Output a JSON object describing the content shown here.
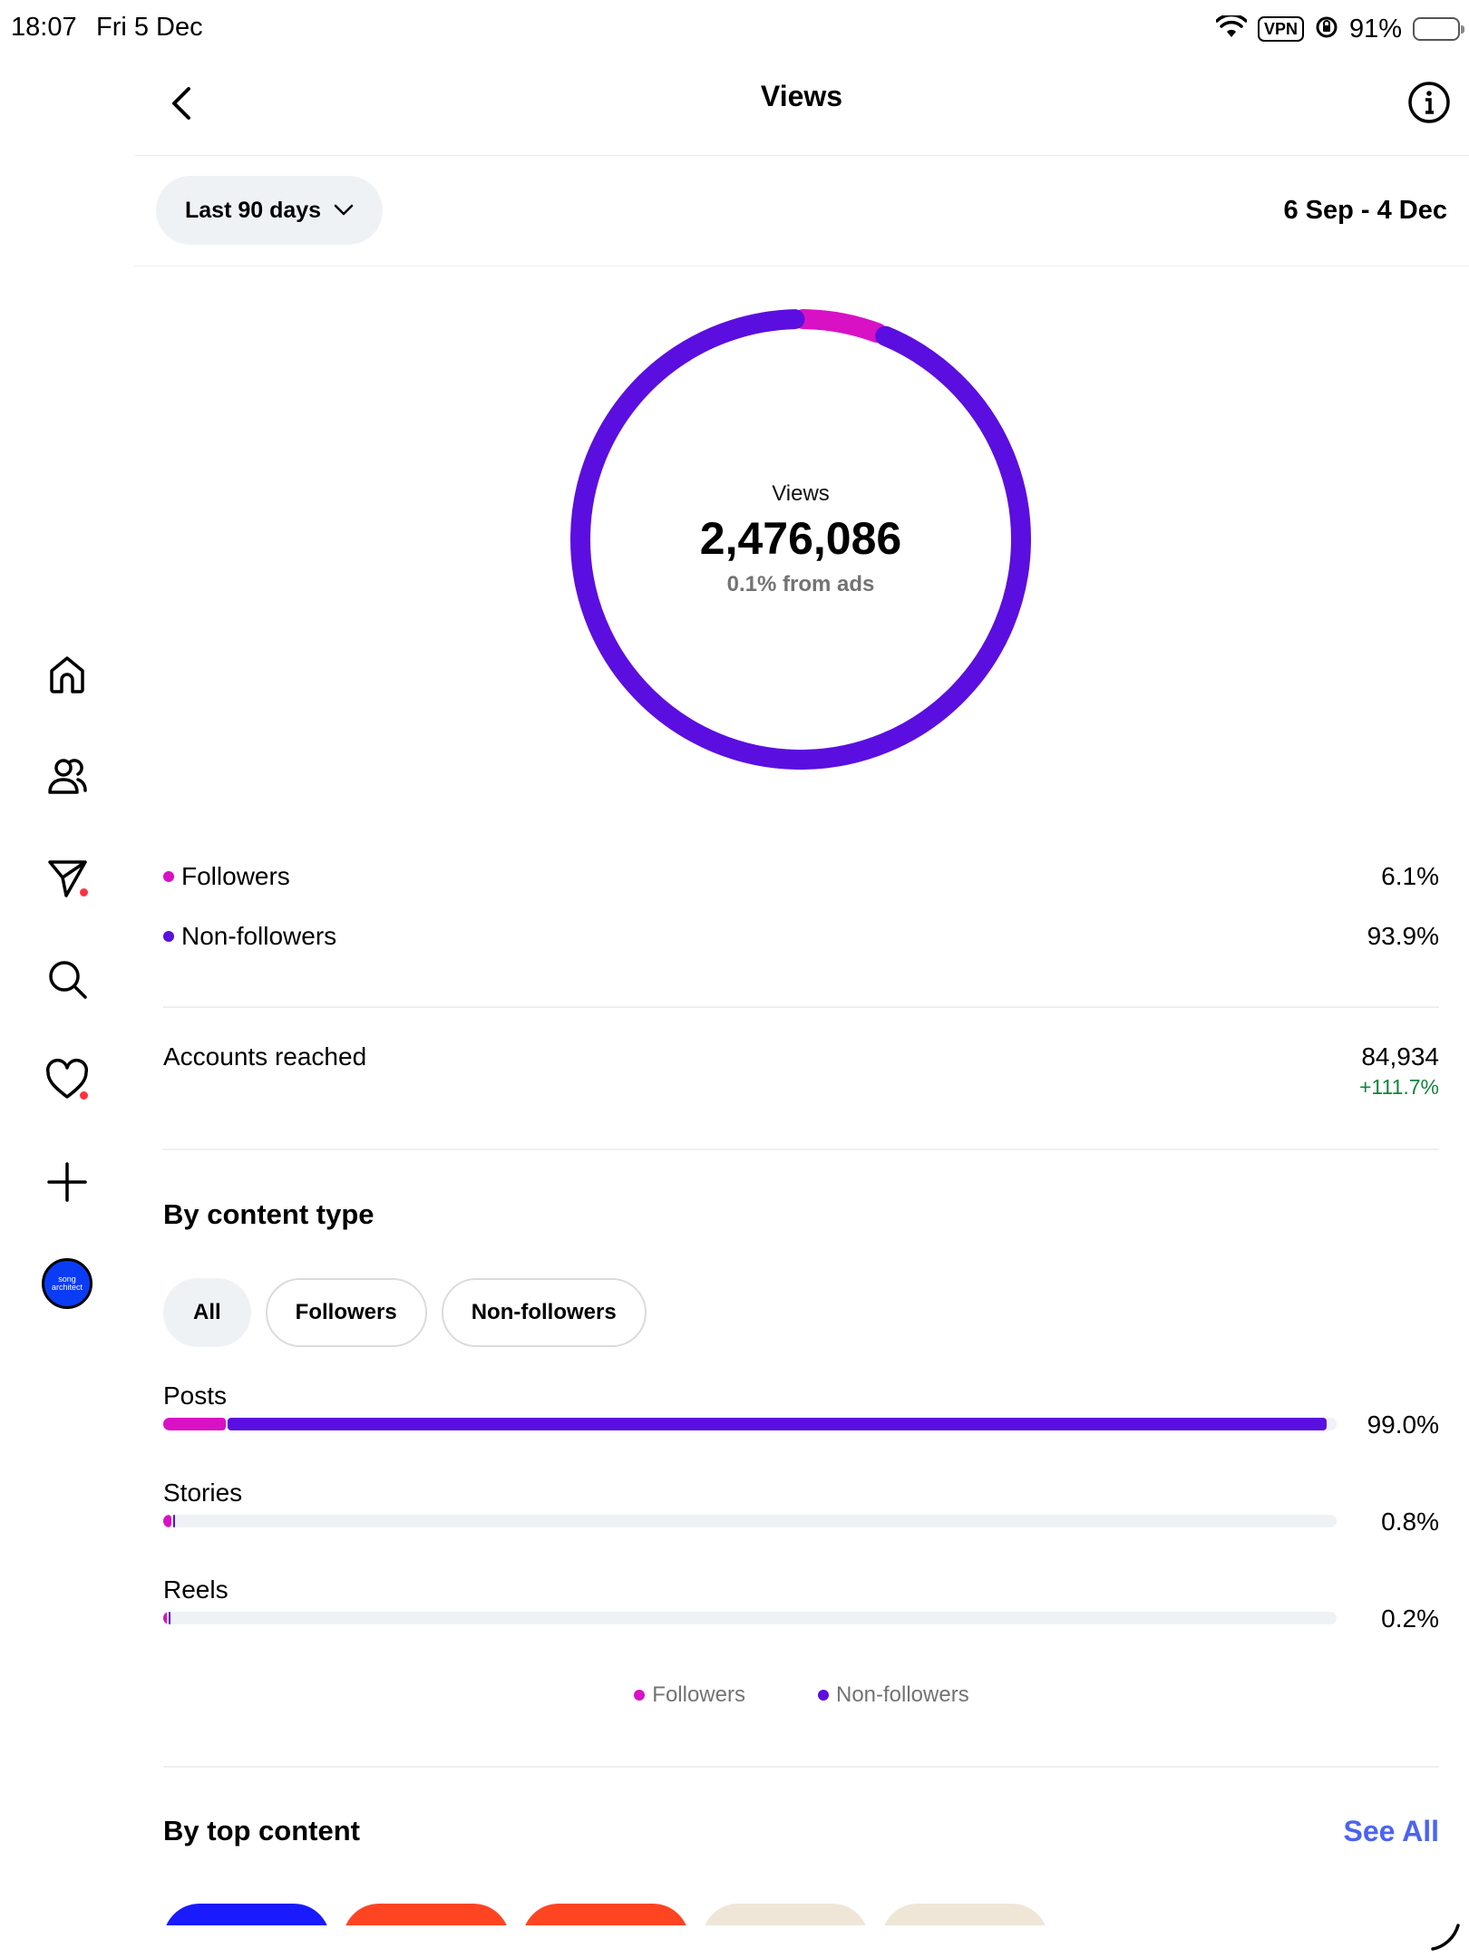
{
  "status_bar": {
    "time": "18:07",
    "date": "Fri 5 Dec",
    "vpn": "VPN",
    "battery": "91%",
    "battery_level": 0.91
  },
  "header": {
    "title": "Views",
    "back_icon": "chevron-left-icon",
    "info_icon": "info-icon"
  },
  "filter": {
    "range_label": "Last 90 days",
    "date_range": "6 Sep - 4 Dec"
  },
  "colors": {
    "followers": "#d911c4",
    "non_followers": "#5b0ee0",
    "track": "#eff2f5",
    "positive": "#12843e",
    "link": "#4b64f2"
  },
  "summary": {
    "label": "Views",
    "total": "2,476,086",
    "ads_note": "0.1% from ads"
  },
  "audience": [
    {
      "label": "Followers",
      "value": "6.1%"
    },
    {
      "label": "Non-followers",
      "value": "93.9%"
    }
  ],
  "reach": {
    "label": "Accounts reached",
    "value": "84,934",
    "change": "+111.7%"
  },
  "content_type": {
    "title": "By content type",
    "filters": [
      "All",
      "Followers",
      "Non-followers"
    ],
    "active_filter": "All",
    "rows": [
      {
        "label": "Posts",
        "value": "99.0%"
      },
      {
        "label": "Stories",
        "value": "0.8%"
      },
      {
        "label": "Reels",
        "value": "0.2%"
      }
    ],
    "legend": [
      "Followers",
      "Non-followers"
    ]
  },
  "top_content": {
    "title": "By top content",
    "see_all": "See All"
  },
  "sidebar": {
    "items": [
      "home-icon",
      "profile-icon",
      "messages-icon",
      "search-icon",
      "activity-heart-icon",
      "create-plus-icon"
    ],
    "avatar_text": "song architect"
  },
  "chart_data": {
    "type": "pie",
    "title": "Views",
    "categories": [
      "Followers",
      "Non-followers"
    ],
    "values": [
      6.1,
      93.9
    ],
    "content_type_bars": {
      "type": "bar",
      "categories": [
        "Posts",
        "Stories",
        "Reels"
      ],
      "values": [
        99.0,
        0.8,
        0.2
      ],
      "series": [
        {
          "name": "Followers",
          "values": [
            5.3,
            0.7,
            0.1
          ]
        },
        {
          "name": "Non-followers",
          "values": [
            93.7,
            0.1,
            0.1
          ]
        }
      ]
    }
  }
}
